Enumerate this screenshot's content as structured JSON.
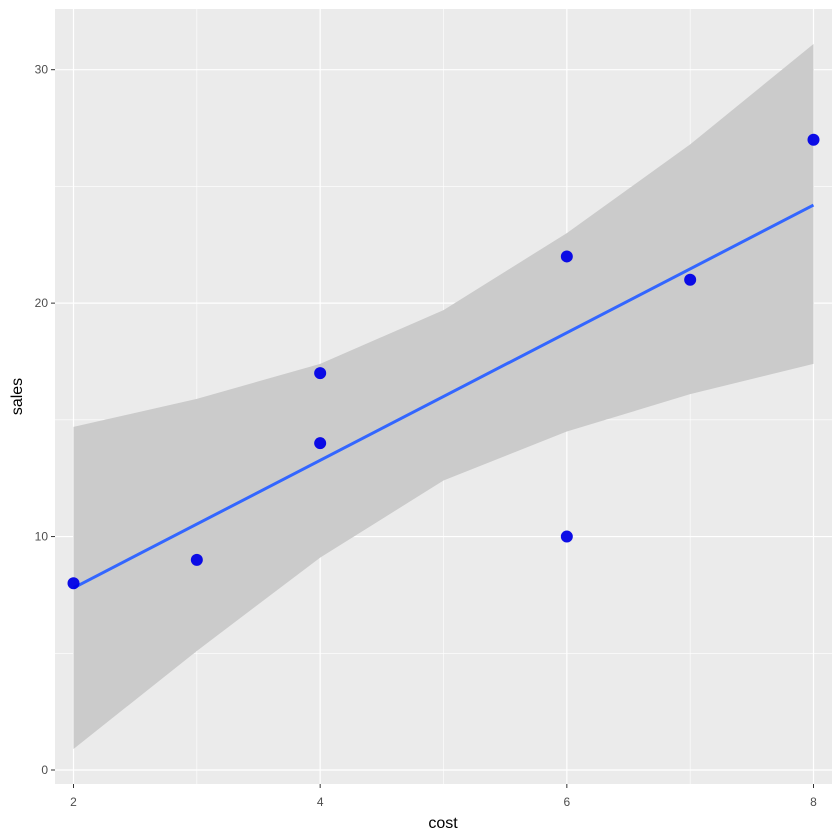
{
  "chart_data": {
    "type": "scatter",
    "xlabel": "cost",
    "ylabel": "sales",
    "xlim": [
      1.85,
      8.15
    ],
    "ylim": [
      -0.6,
      32.6
    ],
    "x_ticks": [
      2,
      4,
      6,
      8
    ],
    "x_minor_ticks": [
      3,
      5,
      7
    ],
    "y_ticks": [
      0,
      10,
      20,
      30
    ],
    "y_minor_ticks": [
      5,
      15,
      25
    ],
    "x_tick_labels": [
      "2",
      "4",
      "6",
      "8"
    ],
    "y_tick_labels": [
      "0",
      "10",
      "20",
      "30"
    ],
    "grid": true,
    "points": {
      "x": [
        2,
        3,
        4,
        4,
        6,
        6,
        7,
        8
      ],
      "y": [
        8,
        9,
        14,
        17,
        22,
        10,
        21,
        27
      ]
    },
    "smooth": {
      "method": "linear fit with confidence band",
      "x_start": 2,
      "x_end": 8,
      "y_start": 7.8,
      "y_end": 24.2,
      "band": {
        "x": [
          2,
          3,
          4,
          5,
          6,
          7,
          8
        ],
        "lower": [
          0.9,
          5.1,
          9.1,
          12.4,
          14.5,
          16.1,
          17.4
        ],
        "upper": [
          14.7,
          15.9,
          17.4,
          19.7,
          23.0,
          26.8,
          31.1
        ]
      }
    },
    "colors": {
      "panel": "#EBEBEB",
      "grid": "#FFFFFF",
      "band": "#CBCBCB",
      "line": "#3366FF",
      "point": "#0000E6"
    }
  }
}
